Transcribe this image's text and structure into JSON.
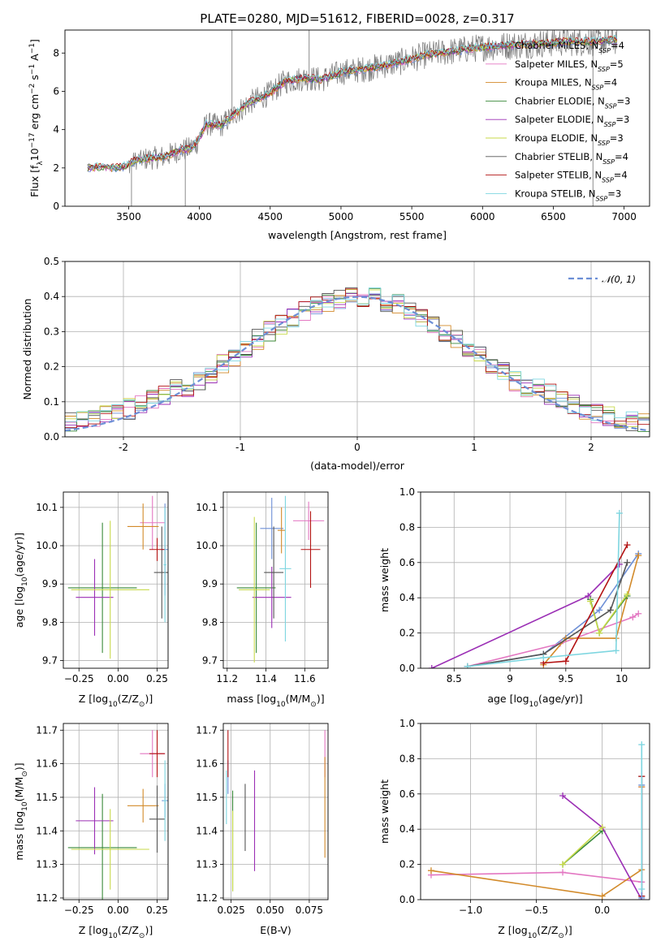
{
  "figure": {
    "title": "PLATE=0280, MJD=51612, FIBERID=0028, z=0.317"
  },
  "colors": {
    "Chabrier MILES": "#6d8fd6",
    "Salpeter MILES": "#e377c2",
    "Kroupa MILES": "#d28a2a",
    "Chabrier ELODIE": "#3a8a3a",
    "Salpeter ELODIE": "#9b2fb5",
    "Kroupa ELODIE": "#c7d94a",
    "Chabrier STELIB": "#555555",
    "Salpeter STELIB": "#b31212",
    "Kroupa STELIB": "#7ed6e0",
    "data": "#7f7f7f",
    "orange": "#e8893a"
  },
  "chart_data": [
    {
      "id": "spectrum",
      "type": "line",
      "title": "PLATE=0280, MJD=51612, FIBERID=0028, z=0.317",
      "xlabel": "wavelength [Angstrom, rest frame]",
      "ylabel_parts": [
        "Flux [f",
        "λ",
        "10",
        "−17",
        " erg cm",
        "−2",
        " s",
        "−1",
        " A",
        "−1",
        "]"
      ],
      "xlim": [
        3050,
        7180
      ],
      "ylim": [
        0,
        9.2
      ],
      "xticks": [
        3500,
        4000,
        4500,
        5000,
        5500,
        6000,
        6500,
        7000
      ],
      "yticks": [
        0,
        2,
        4,
        6,
        8
      ],
      "legend": [
        {
          "main": "Chabrier MILES, N",
          "sub": "SSP",
          "tail": "=4"
        },
        {
          "main": "Salpeter MILES, N",
          "sub": "SSP",
          "tail": "=5"
        },
        {
          "main": "Kroupa MILES, N",
          "sub": "SSP",
          "tail": "=4"
        },
        {
          "main": "Chabrier ELODIE, N",
          "sub": "SSP",
          "tail": "=3"
        },
        {
          "main": "Salpeter ELODIE, N",
          "sub": "SSP",
          "tail": "=3"
        },
        {
          "main": "Kroupa ELODIE, N",
          "sub": "SSP",
          "tail": "=3"
        },
        {
          "main": "Chabrier STELIB, N",
          "sub": "SSP",
          "tail": "=4"
        },
        {
          "main": "Salpeter STELIB, N",
          "sub": "SSP",
          "tail": "=4"
        },
        {
          "main": "Kroupa STELIB, N",
          "sub": "SSP",
          "tail": "=3"
        }
      ],
      "continuum_knots": [
        [
          3210,
          2.0
        ],
        [
          3300,
          2.05
        ],
        [
          3400,
          2.0
        ],
        [
          3480,
          2.1
        ],
        [
          3550,
          2.4
        ],
        [
          3650,
          2.5
        ],
        [
          3760,
          2.6
        ],
        [
          3850,
          2.9
        ],
        [
          3930,
          3.0
        ],
        [
          3980,
          3.3
        ],
        [
          4050,
          4.3
        ],
        [
          4150,
          4.2
        ],
        [
          4250,
          4.8
        ],
        [
          4350,
          5.4
        ],
        [
          4500,
          5.9
        ],
        [
          4600,
          6.5
        ],
        [
          4750,
          6.7
        ],
        [
          4860,
          6.6
        ],
        [
          5000,
          7.0
        ],
        [
          5200,
          7.2
        ],
        [
          5400,
          7.5
        ],
        [
          5600,
          7.9
        ],
        [
          5800,
          8.1
        ],
        [
          6000,
          8.3
        ],
        [
          6200,
          8.4
        ],
        [
          6400,
          8.5
        ],
        [
          6600,
          8.6
        ],
        [
          6800,
          8.6
        ],
        [
          6950,
          8.7
        ]
      ],
      "data_spikes": [
        [
          4230,
          9.2
        ],
        [
          4775,
          9.2
        ],
        [
          6750,
          9.2
        ],
        [
          3900,
          0.0
        ],
        [
          6780,
          0.0
        ],
        [
          3520,
          0.0
        ]
      ]
    },
    {
      "id": "residuals",
      "type": "step",
      "xlabel": "(data-model)/error",
      "ylabel": "Normed distribution",
      "xlim": [
        -2.5,
        2.5
      ],
      "ylim": [
        0,
        0.5
      ],
      "xticks": [
        -2,
        -1,
        0,
        1,
        2
      ],
      "yticks": [
        0.0,
        0.1,
        0.2,
        0.3,
        0.4,
        0.5
      ],
      "legend": "𝒩(0, 1)",
      "reference": {
        "name": "N(0,1)",
        "mean": 0,
        "sigma": 1
      }
    },
    {
      "id": "age_vs_Z",
      "type": "errorbar",
      "xlabel_parts": [
        "Z [log",
        "10",
        "(Z/Z",
        "⊙",
        ")]"
      ],
      "ylabel_parts": [
        "age  [log",
        "10",
        "(age/yr)]"
      ],
      "xlim": [
        -0.35,
        0.32
      ],
      "ylim": [
        9.68,
        10.14
      ],
      "xticks": [
        -0.25,
        0.0,
        0.25
      ],
      "xtick_labels": [
        "−0.25",
        "0.00",
        "0.25"
      ],
      "yticks": [
        9.7,
        9.8,
        9.9,
        10.0,
        10.1
      ],
      "points": [
        {
          "model": "Chabrier MILES",
          "x": 0.3,
          "xerr": 0.02,
          "y": 9.99,
          "yerr": 0.12
        },
        {
          "model": "Salpeter MILES",
          "x": 0.22,
          "xerr": 0.08,
          "y": 10.06,
          "yerr": 0.07
        },
        {
          "model": "Kroupa MILES",
          "x": 0.16,
          "xerr": 0.1,
          "y": 10.05,
          "yerr": 0.06
        },
        {
          "model": "Chabrier ELODIE",
          "x": -0.1,
          "xerr": 0.22,
          "y": 9.89,
          "yerr": 0.17
        },
        {
          "model": "Salpeter ELODIE",
          "x": -0.15,
          "xerr": 0.12,
          "y": 9.865,
          "yerr": 0.1
        },
        {
          "model": "Kroupa ELODIE",
          "x": -0.05,
          "xerr": 0.25,
          "y": 9.885,
          "yerr": 0.18
        },
        {
          "model": "Chabrier STELIB",
          "x": 0.28,
          "xerr": 0.05,
          "y": 9.93,
          "yerr": 0.12
        },
        {
          "model": "Salpeter STELIB",
          "x": 0.25,
          "xerr": 0.05,
          "y": 9.99,
          "yerr": 0.03
        },
        {
          "model": "Kroupa STELIB",
          "x": 0.3,
          "xerr": 0.01,
          "y": 9.95,
          "yerr": 0.15
        }
      ]
    },
    {
      "id": "age_vs_mass",
      "type": "errorbar",
      "xlabel_parts": [
        "mass [log",
        "10",
        "(M/M",
        "⊙",
        ")]"
      ],
      "ylabel": "",
      "xlim": [
        11.18,
        11.72
      ],
      "ylim": [
        9.68,
        10.14
      ],
      "xticks": [
        11.2,
        11.4,
        11.6
      ],
      "yticks": [
        9.7,
        9.8,
        9.9,
        10.0,
        10.1
      ],
      "points": [
        {
          "model": "Chabrier MILES",
          "x": 11.43,
          "xerr": 0.06,
          "y": 10.045,
          "yerr": 0.08
        },
        {
          "model": "Salpeter MILES",
          "x": 11.62,
          "xerr": 0.08,
          "y": 10.065,
          "yerr": 0.05
        },
        {
          "model": "Kroupa MILES",
          "x": 11.48,
          "xerr": 0.02,
          "y": 10.04,
          "yerr": 0.06
        },
        {
          "model": "Chabrier ELODIE",
          "x": 11.35,
          "xerr": 0.1,
          "y": 9.89,
          "yerr": 0.17
        },
        {
          "model": "Salpeter ELODIE",
          "x": 11.43,
          "xerr": 0.1,
          "y": 9.865,
          "yerr": 0.08
        },
        {
          "model": "Kroupa ELODIE",
          "x": 11.34,
          "xerr": 0.08,
          "y": 9.885,
          "yerr": 0.19
        },
        {
          "model": "Chabrier STELIB",
          "x": 11.44,
          "xerr": 0.05,
          "y": 9.93,
          "yerr": 0.12
        },
        {
          "model": "Salpeter STELIB",
          "x": 11.63,
          "xerr": 0.05,
          "y": 9.99,
          "yerr": 0.1
        },
        {
          "model": "Kroupa STELIB",
          "x": 11.5,
          "xerr": 0.03,
          "y": 9.94,
          "yerr": 0.19
        }
      ]
    },
    {
      "id": "massweight_vs_age",
      "type": "line",
      "xlabel_parts": [
        "age  [log",
        "10",
        "(age/yr)]"
      ],
      "ylabel": "mass weight",
      "xlim": [
        8.2,
        10.25
      ],
      "ylim": [
        0,
        1.0
      ],
      "xticks": [
        8.5,
        9.0,
        9.5,
        10.0
      ],
      "yticks": [
        0.0,
        0.2,
        0.4,
        0.6,
        0.8,
        1.0
      ],
      "series": [
        {
          "model": "Chabrier MILES",
          "x": [
            8.62,
            9.3,
            9.8,
            10.15
          ],
          "y": [
            0.01,
            0.08,
            0.33,
            0.65
          ]
        },
        {
          "model": "Salpeter MILES",
          "x": [
            8.62,
            9.45,
            10.1,
            10.15
          ],
          "y": [
            0.01,
            0.14,
            0.29,
            0.31
          ]
        },
        {
          "model": "Kroupa MILES",
          "x": [
            9.3,
            9.5,
            9.95,
            10.15
          ],
          "y": [
            0.02,
            0.17,
            0.17,
            0.64
          ]
        },
        {
          "model": "Chabrier ELODIE",
          "x": [
            9.72,
            9.8,
            10.05
          ],
          "y": [
            0.39,
            0.2,
            0.41
          ]
        },
        {
          "model": "Salpeter ELODIE",
          "x": [
            8.3,
            9.7,
            9.98
          ],
          "y": [
            0.0,
            0.41,
            0.59
          ]
        },
        {
          "model": "Kroupa ELODIE",
          "x": [
            9.72,
            9.8,
            10.05
          ],
          "y": [
            0.38,
            0.2,
            0.42
          ]
        },
        {
          "model": "Chabrier STELIB",
          "x": [
            8.62,
            9.3,
            9.9,
            10.05
          ],
          "y": [
            0.01,
            0.08,
            0.33,
            0.6
          ]
        },
        {
          "model": "Salpeter STELIB",
          "x": [
            9.3,
            9.5,
            10.05
          ],
          "y": [
            0.03,
            0.04,
            0.7
          ]
        },
        {
          "model": "Kroupa STELIB",
          "x": [
            8.62,
            9.3,
            9.95,
            9.98
          ],
          "y": [
            0.01,
            0.06,
            0.1,
            0.88
          ]
        }
      ]
    },
    {
      "id": "mass_vs_Z",
      "type": "errorbar",
      "xlabel_parts": [
        "Z [log",
        "10",
        "(Z/Z",
        "⊙",
        ")]"
      ],
      "ylabel_parts": [
        "mass [log",
        "10",
        "(M/M",
        "⊙",
        ")]"
      ],
      "xlim": [
        -0.35,
        0.32
      ],
      "ylim": [
        11.195,
        11.72
      ],
      "xticks": [
        -0.25,
        0.0,
        0.25
      ],
      "xtick_labels": [
        "−0.25",
        "0.00",
        "0.25"
      ],
      "yticks": [
        11.2,
        11.3,
        11.4,
        11.5,
        11.6,
        11.7
      ],
      "points": [
        {
          "model": "Chabrier MILES",
          "x": 0.3,
          "xerr": 0.02,
          "y": 11.49,
          "yerr": 0.05
        },
        {
          "model": "Salpeter MILES",
          "x": 0.22,
          "xerr": 0.08,
          "y": 11.63,
          "yerr": 0.07
        },
        {
          "model": "Kroupa MILES",
          "x": 0.16,
          "xerr": 0.1,
          "y": 11.475,
          "yerr": 0.05
        },
        {
          "model": "Chabrier ELODIE",
          "x": -0.1,
          "xerr": 0.22,
          "y": 11.35,
          "yerr": 0.16
        },
        {
          "model": "Salpeter ELODIE",
          "x": -0.15,
          "xerr": 0.12,
          "y": 11.43,
          "yerr": 0.1
        },
        {
          "model": "Kroupa ELODIE",
          "x": -0.05,
          "xerr": 0.25,
          "y": 11.345,
          "yerr": 0.12
        },
        {
          "model": "Chabrier STELIB",
          "x": 0.25,
          "xerr": 0.05,
          "y": 11.435,
          "yerr": 0.1
        },
        {
          "model": "Salpeter STELIB",
          "x": 0.25,
          "xerr": 0.05,
          "y": 11.63,
          "yerr": 0.07
        },
        {
          "model": "Kroupa STELIB",
          "x": 0.3,
          "xerr": 0.01,
          "y": 11.49,
          "yerr": 0.12
        }
      ]
    },
    {
      "id": "mass_vs_EBV",
      "type": "errorbar",
      "xlabel": "E(B-V)",
      "ylabel": "",
      "xlim": [
        0.02,
        0.087
      ],
      "ylim": [
        11.195,
        11.72
      ],
      "xticks": [
        0.025,
        0.05,
        0.075
      ],
      "xtick_labels": [
        "0.025",
        "0.050",
        "0.075"
      ],
      "yticks": [
        11.2,
        11.3,
        11.4,
        11.5,
        11.6,
        11.7
      ],
      "points": [
        {
          "model": "Chabrier MILES",
          "x": 0.023,
          "xerr": 0.0,
          "y": 11.56,
          "yerr": 0.05
        },
        {
          "model": "Salpeter MILES",
          "x": 0.085,
          "xerr": 0.0,
          "y": 11.63,
          "yerr": 0.07
        },
        {
          "model": "Kroupa MILES",
          "x": 0.085,
          "xerr": 0.0,
          "y": 11.47,
          "yerr": 0.15
        },
        {
          "model": "Chabrier ELODIE",
          "x": 0.026,
          "xerr": 0.0,
          "y": 11.37,
          "yerr": 0.15
        },
        {
          "model": "Salpeter ELODIE",
          "x": 0.04,
          "xerr": 0.0,
          "y": 11.43,
          "yerr": 0.15
        },
        {
          "model": "Kroupa ELODIE",
          "x": 0.026,
          "xerr": 0.0,
          "y": 11.34,
          "yerr": 0.12
        },
        {
          "model": "Chabrier STELIB",
          "x": 0.034,
          "xerr": 0.0,
          "y": 11.44,
          "yerr": 0.1
        },
        {
          "model": "Salpeter STELIB",
          "x": 0.023,
          "xerr": 0.0,
          "y": 11.63,
          "yerr": 0.07
        },
        {
          "model": "Kroupa STELIB",
          "x": 0.022,
          "xerr": 0.0,
          "y": 11.5,
          "yerr": 0.08
        }
      ]
    },
    {
      "id": "massweight_vs_Z",
      "type": "line",
      "xlabel_parts": [
        "Z [log",
        "10",
        "(Z/Z",
        "⊙",
        ")]"
      ],
      "ylabel": "mass weight",
      "xlim": [
        -1.38,
        0.36
      ],
      "ylim": [
        0,
        1.0
      ],
      "xticks": [
        -1.0,
        -0.5,
        0.0
      ],
      "xtick_labels": [
        "−1.0",
        "−0.5",
        "0.0"
      ],
      "yticks": [
        0.0,
        0.2,
        0.4,
        0.6,
        0.8,
        1.0
      ],
      "series": [
        {
          "model": "Salpeter MILES",
          "x": [
            -1.3,
            -0.3,
            0.3,
            0.3
          ],
          "y": [
            0.14,
            0.155,
            0.1,
            0.64
          ]
        },
        {
          "model": "Kroupa MILES",
          "x": [
            -1.3,
            0.0,
            0.3,
            0.3
          ],
          "y": [
            0.165,
            0.02,
            0.17,
            0.64
          ]
        },
        {
          "model": "Chabrier ELODIE",
          "x": [
            -0.3,
            0.0
          ],
          "y": [
            0.2,
            0.39
          ]
        },
        {
          "model": "Salpeter ELODIE",
          "x": [
            -0.3,
            0.0,
            0.3
          ],
          "y": [
            0.59,
            0.41,
            0.0
          ]
        },
        {
          "model": "Kroupa ELODIE",
          "x": [
            -0.3,
            0.0
          ],
          "y": [
            0.2,
            0.41
          ]
        },
        {
          "model": "Chabrier STELIB",
          "x": [
            0.3,
            0.3
          ],
          "y": [
            0.02,
            0.7
          ]
        },
        {
          "model": "Salpeter STELIB",
          "x": [
            0.3,
            0.3
          ],
          "y": [
            0.02,
            0.7
          ]
        },
        {
          "model": "Chabrier MILES",
          "x": [
            0.3,
            0.3
          ],
          "y": [
            0.01,
            0.65
          ]
        },
        {
          "model": "Kroupa STELIB",
          "x": [
            0.3,
            0.3
          ],
          "y": [
            0.06,
            0.88
          ]
        }
      ]
    }
  ]
}
